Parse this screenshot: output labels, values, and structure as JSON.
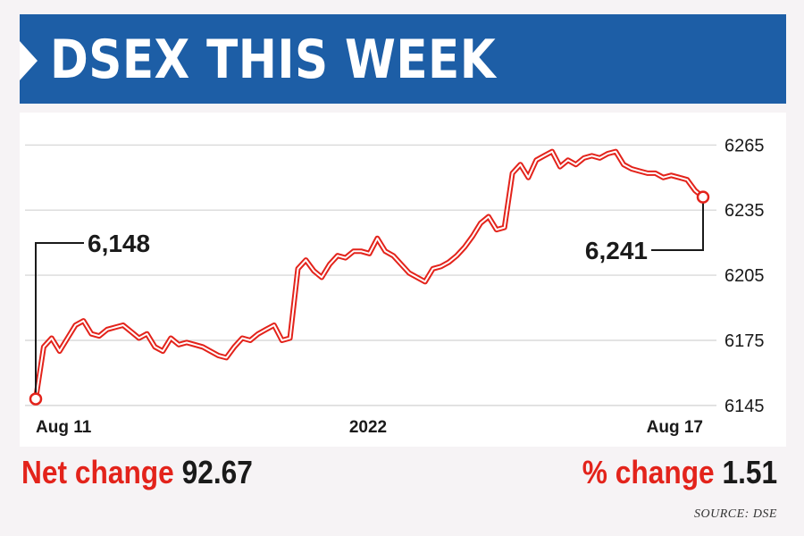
{
  "header": {
    "title": "DSEX THIS WEEK"
  },
  "chart_data": {
    "type": "line",
    "title": "DSEX THIS WEEK",
    "xlabel": "",
    "ylabel": "",
    "x_tick_labels": [
      "Aug 11",
      "2022",
      "Aug 17"
    ],
    "y_ticks": [
      6145,
      6175,
      6205,
      6235,
      6265
    ],
    "ylim": [
      6140,
      6275
    ],
    "grid": true,
    "series": [
      {
        "values": [
          6148,
          6172,
          6176,
          6170,
          6176,
          6182,
          6184,
          6178,
          6177,
          6180,
          6181,
          6182,
          6179,
          6176,
          6178,
          6172,
          6170,
          6176,
          6173,
          6174,
          6173,
          6172,
          6170,
          6168,
          6167,
          6172,
          6176,
          6175,
          6178,
          6180,
          6182,
          6175,
          6176,
          6208,
          6212,
          6207,
          6204,
          6210,
          6214,
          6213,
          6216,
          6216,
          6215,
          6222,
          6216,
          6214,
          6210,
          6206,
          6204,
          6202,
          6208,
          6209,
          6211,
          6214,
          6218,
          6223,
          6229,
          6232,
          6226,
          6227,
          6252,
          6256,
          6250,
          6258,
          6260,
          6262,
          6255,
          6258,
          6256,
          6259,
          6260,
          6259,
          6261,
          6262,
          6256,
          6254,
          6253,
          6252,
          6252,
          6250,
          6251,
          6250,
          6249,
          6244,
          6241
        ]
      }
    ],
    "annotations": [
      {
        "text": "6,148",
        "value": 6148,
        "at": "start"
      },
      {
        "text": "6,241",
        "value": 6241,
        "at": "end"
      }
    ]
  },
  "footer": {
    "net_change_label": "Net change",
    "net_change_value": "92.67",
    "pct_change_label": "% change",
    "pct_change_value": "1.51",
    "source": "SOURCE: DSE"
  },
  "colors": {
    "header_bg": "#1d5ea6",
    "line": "#e3231b",
    "accent_text": "#e3231b",
    "grid": "#d2d2d2"
  }
}
